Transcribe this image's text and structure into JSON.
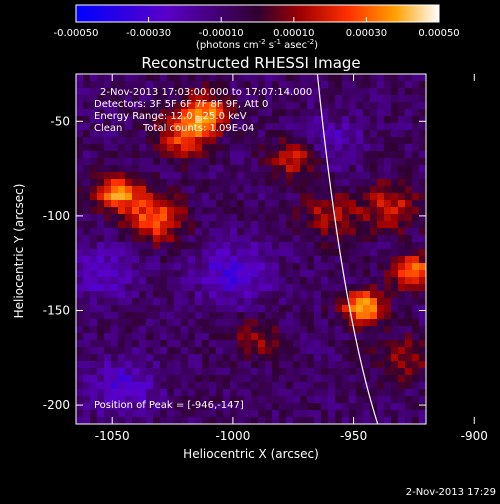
{
  "chart_data": {
    "type": "heatmap",
    "title": "Reconstructed RHESSI Image",
    "xlabel": "Heliocentric X (arcsec)",
    "ylabel": "Heliocentric Y (arcsec)",
    "xlim": [
      -1065,
      -920
    ],
    "ylim": [
      -210,
      -25
    ],
    "xticks": [
      -1050,
      -1000,
      -950,
      -900
    ],
    "yticks": [
      -50,
      -100,
      -150,
      -200
    ],
    "colorbar": {
      "ticks": [
        -0.0005,
        -0.0003,
        -0.0001,
        0.0001,
        0.0003,
        0.0005
      ],
      "tick_labels": [
        "-0.00050",
        "-0.00030",
        "-0.00010",
        "0.00010",
        "0.00030",
        "0.00050"
      ],
      "units_line1": "(photons cm",
      "units_exp1": "-2",
      "units_line2": " s",
      "units_exp2": "-1",
      "units_line3": " asec",
      "units_exp3": "-2",
      "units_close": ")",
      "range": [
        -0.0005,
        0.0005
      ]
    },
    "peak": {
      "x": -946,
      "y": -147,
      "label": "Position of Peak = [-946,-147]"
    },
    "limb_curve": {
      "points": [
        [
          -965,
          -25
        ],
        [
          -955,
          -150
        ],
        [
          -940,
          -210
        ]
      ]
    },
    "sources": [
      {
        "x": -946,
        "y": -148,
        "amplitude": 0.0005,
        "sigma": 6
      },
      {
        "x": -1047,
        "y": -88,
        "amplitude": 0.00042,
        "sigma": 7
      },
      {
        "x": -1032,
        "y": -102,
        "amplitude": 0.00038,
        "sigma": 8
      },
      {
        "x": -1012,
        "y": -45,
        "amplitude": 0.0004,
        "sigma": 7
      },
      {
        "x": -1020,
        "y": -58,
        "amplitude": 0.00032,
        "sigma": 8
      },
      {
        "x": -975,
        "y": -70,
        "amplitude": 0.00028,
        "sigma": 7
      },
      {
        "x": -960,
        "y": -100,
        "amplitude": 0.00022,
        "sigma": 8
      },
      {
        "x": -925,
        "y": -130,
        "amplitude": 0.00045,
        "sigma": 6
      },
      {
        "x": -935,
        "y": -95,
        "amplitude": 0.00025,
        "sigma": 9
      },
      {
        "x": -990,
        "y": -165,
        "amplitude": 0.00018,
        "sigma": 7
      },
      {
        "x": -930,
        "y": -175,
        "amplitude": 0.0002,
        "sigma": 8
      },
      {
        "x": -1055,
        "y": -130,
        "amplitude": -0.00018,
        "sigma": 10
      },
      {
        "x": -1000,
        "y": -130,
        "amplitude": -0.00022,
        "sigma": 11
      },
      {
        "x": -960,
        "y": -60,
        "amplitude": -0.00015,
        "sigma": 9
      },
      {
        "x": -1045,
        "y": -190,
        "amplitude": -0.0002,
        "sigma": 10
      },
      {
        "x": -900,
        "y": -190,
        "amplitude": -0.00016,
        "sigma": 9
      }
    ],
    "annotations": {
      "time": "2-Nov-2013 17:03:00.000 to 17:07:14.000",
      "detectors": "Detectors: 3F 5F 6F 7F 8F 9F, Att 0",
      "energy": "Energy Range: 12.0 - 25.0 keV",
      "clean": "Clean",
      "counts": "Total counts: 1.09E-04"
    }
  },
  "footer": {
    "timestamp": "2-Nov-2013 17:29"
  }
}
